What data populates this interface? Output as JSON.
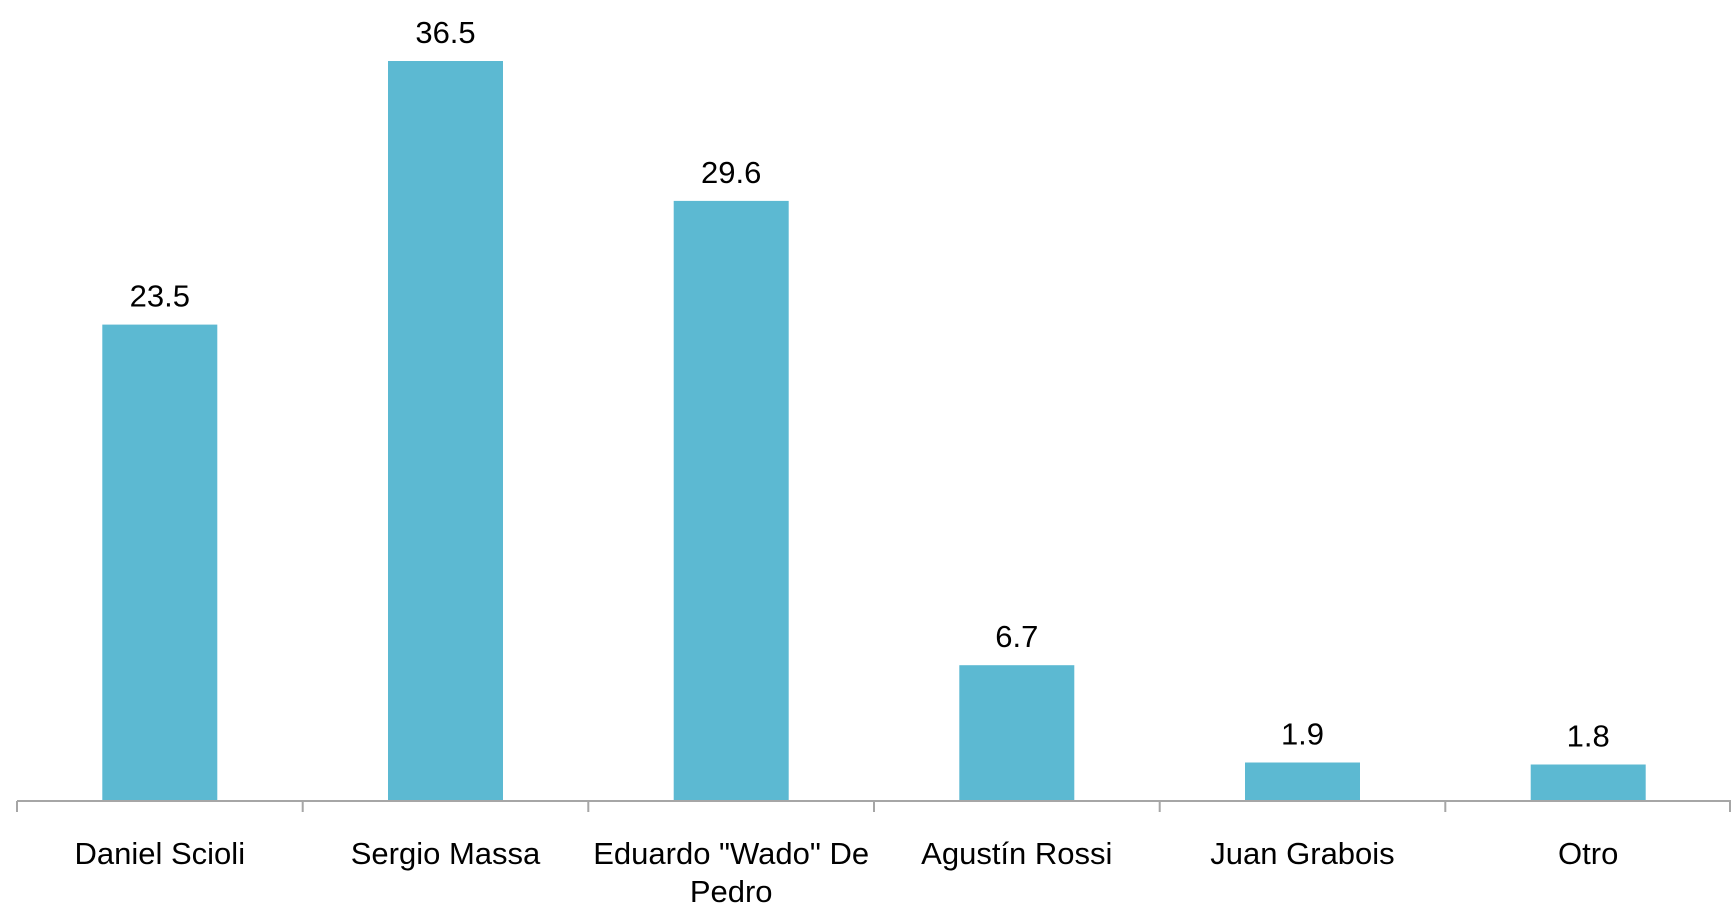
{
  "chart_data": {
    "type": "bar",
    "categories": [
      "Daniel Scioli",
      "Sergio Massa",
      "Eduardo \"Wado\" De Pedro",
      "Agustín Rossi",
      "Juan Grabois",
      "Otro"
    ],
    "category_lines": [
      [
        "Daniel Scioli"
      ],
      [
        "Sergio Massa"
      ],
      [
        "Eduardo \"Wado\" De",
        "Pedro"
      ],
      [
        "Agustín Rossi"
      ],
      [
        "Juan Grabois"
      ],
      [
        "Otro"
      ]
    ],
    "values": [
      23.5,
      36.5,
      29.6,
      6.7,
      1.9,
      1.8
    ],
    "value_labels": [
      "23.5",
      "36.5",
      "29.6",
      "6.7",
      "1.9",
      "1.8"
    ],
    "ylim": [
      0,
      36.5
    ],
    "grid": false,
    "legend": "none",
    "bar_color": "#5cb9d2",
    "axis_color": "#a6a6a6",
    "text_color": "#000000"
  }
}
